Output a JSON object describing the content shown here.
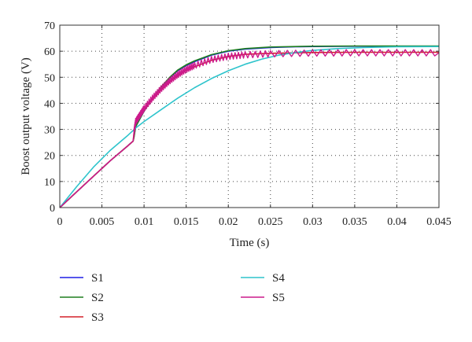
{
  "chart_data": {
    "type": "line",
    "title": "",
    "xlabel": "Time (s)",
    "ylabel": "Boost output voltage (V)",
    "xlim": [
      0,
      0.045
    ],
    "ylim": [
      0,
      70
    ],
    "xticks": [
      0,
      0.005,
      0.01,
      0.015,
      0.02,
      0.025,
      0.03,
      0.035,
      0.04,
      0.045
    ],
    "xtick_labels": [
      "0",
      "0.005",
      "0.01",
      "0.015",
      "0.02",
      "0.025",
      "0.03",
      "0.035",
      "0.04",
      "0.045"
    ],
    "yticks": [
      0,
      10,
      20,
      30,
      40,
      50,
      60,
      70
    ],
    "ytick_labels": [
      "0",
      "10",
      "20",
      "30",
      "40",
      "50",
      "60",
      "70"
    ],
    "grid": true,
    "legend_position": "below",
    "series": [
      {
        "name": "S1",
        "color": "#1f1fe6",
        "x": [
          0,
          0.002,
          0.004,
          0.006,
          0.008,
          0.0087,
          0.0088,
          0.009,
          0.0095,
          0.01,
          0.011,
          0.012,
          0.013,
          0.014,
          0.015,
          0.016,
          0.018,
          0.02,
          0.022,
          0.025,
          0.028,
          0.03,
          0.035,
          0.04,
          0.045
        ],
        "y": [
          0,
          6,
          12,
          18,
          23.5,
          25.5,
          27,
          31,
          34,
          37,
          42,
          46,
          49.5,
          52.5,
          54.5,
          56,
          58.5,
          60,
          60.8,
          61.4,
          61.7,
          61.8,
          61.9,
          61.9,
          61.9
        ]
      },
      {
        "name": "S2",
        "color": "#1e7f1e",
        "x": [
          0,
          0.002,
          0.004,
          0.006,
          0.008,
          0.0087,
          0.0088,
          0.009,
          0.0095,
          0.01,
          0.011,
          0.012,
          0.013,
          0.014,
          0.015,
          0.016,
          0.018,
          0.02,
          0.022,
          0.025,
          0.028,
          0.03,
          0.035,
          0.04,
          0.045
        ],
        "y": [
          0,
          6,
          12,
          18,
          23.5,
          25.5,
          27,
          31,
          34,
          37,
          42,
          46.2,
          49.8,
          52.8,
          54.8,
          56.3,
          58.7,
          60.2,
          61,
          61.6,
          61.8,
          61.9,
          62,
          62,
          62
        ]
      },
      {
        "name": "S3",
        "color": "#d4202a",
        "x": [
          0,
          0.002,
          0.004,
          0.006,
          0.008,
          0.0087,
          0.0088,
          0.009,
          0.0095,
          0.01,
          0.011,
          0.012,
          0.013,
          0.014,
          0.015,
          0.016,
          0.018,
          0.02,
          0.022,
          0.025,
          0.03,
          0.035,
          0.04,
          0.045
        ],
        "y": [
          0,
          6,
          12,
          18,
          23.5,
          25.5,
          28,
          32,
          35,
          37.5,
          41.5,
          45,
          48,
          50.5,
          52.5,
          54,
          56.5,
          58,
          58.8,
          59.2,
          59.5,
          59.6,
          59.6,
          59.6
        ]
      },
      {
        "name": "S4",
        "color": "#2ec4cc",
        "x": [
          0,
          0.002,
          0.004,
          0.006,
          0.008,
          0.009,
          0.01,
          0.012,
          0.014,
          0.016,
          0.018,
          0.02,
          0.022,
          0.024,
          0.026,
          0.028,
          0.03,
          0.033,
          0.036,
          0.04,
          0.045
        ],
        "y": [
          0,
          8,
          15.5,
          22,
          27.5,
          30.5,
          33,
          37.5,
          42,
          46,
          49.5,
          52.5,
          55,
          57,
          58.5,
          59.5,
          60.3,
          61,
          61.4,
          61.7,
          61.8
        ]
      },
      {
        "name": "S5",
        "color": "#cc1a8c",
        "x": [
          0,
          0.002,
          0.004,
          0.006,
          0.008,
          0.0087,
          0.0088,
          0.009,
          0.0095,
          0.01,
          0.011,
          0.012,
          0.013,
          0.014,
          0.015,
          0.016,
          0.018,
          0.02,
          0.022,
          0.025,
          0.03,
          0.035,
          0.04,
          0.045
        ],
        "y": [
          0,
          6,
          12,
          18,
          23.5,
          25.5,
          29,
          33,
          35.5,
          38,
          42,
          45.5,
          48.5,
          51,
          53,
          54.5,
          56.8,
          58,
          58.6,
          59,
          59.3,
          59.4,
          59.4,
          59.4
        ],
        "ripple": 1.2
      }
    ]
  }
}
